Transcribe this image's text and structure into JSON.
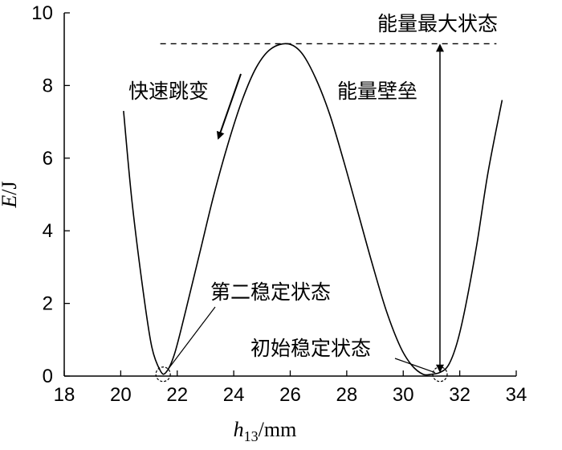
{
  "chart_data": {
    "type": "line",
    "title": "",
    "xlabel": {
      "var": "h",
      "sub": "13",
      "unit": "/mm"
    },
    "ylabel": {
      "var": "E",
      "unit": "/J"
    },
    "xlim": [
      18,
      34
    ],
    "ylim": [
      0,
      10
    ],
    "x_ticks": [
      18,
      20,
      22,
      24,
      26,
      28,
      30,
      32,
      34
    ],
    "y_ticks": [
      0,
      2,
      4,
      6,
      8,
      10
    ],
    "grid": false,
    "legend": "none",
    "series": [
      {
        "x": [
          20.1,
          20.4,
          20.8,
          21.1,
          21.4,
          21.6,
          21.9,
          22.3,
          22.8,
          23.3,
          23.8,
          24.3,
          24.8,
          25.3,
          25.9,
          26.4,
          26.9,
          27.4,
          27.9,
          28.4,
          28.9,
          29.4,
          29.9,
          30.3,
          30.7,
          31.0,
          31.3,
          31.6,
          31.9,
          32.2,
          32.6,
          33.0,
          33.5
        ],
        "y": [
          7.3,
          4.8,
          2.3,
          0.8,
          0.15,
          0.1,
          0.6,
          1.8,
          3.4,
          5.0,
          6.4,
          7.6,
          8.5,
          9.0,
          9.15,
          8.9,
          8.2,
          7.2,
          5.9,
          4.5,
          3.1,
          1.8,
          0.8,
          0.3,
          0.05,
          0.05,
          0.1,
          0.3,
          0.9,
          1.9,
          3.6,
          5.6,
          7.6
        ]
      }
    ],
    "reference_line": {
      "y": 9.15,
      "style": "dashed"
    },
    "stable_points": [
      {
        "x": 21.5,
        "y": 0.05
      },
      {
        "x": 31.3,
        "y": 0.05
      }
    ],
    "annotations": {
      "max_state": "能量最大状态",
      "jump": "快速跳变",
      "barrier": "能量壁垒",
      "second_stable": "第二稳定状态",
      "initial_stable": "初始稳定状态"
    }
  }
}
